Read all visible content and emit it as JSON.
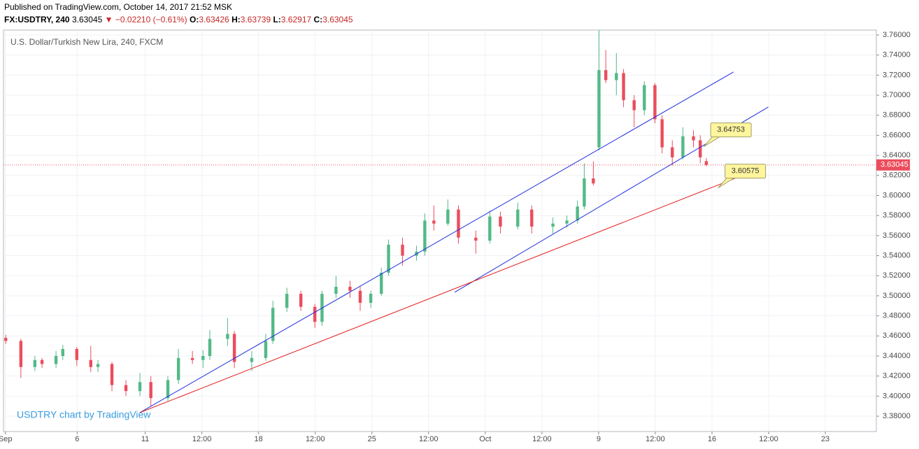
{
  "header": {
    "published": "Published on TradingView.com, October 14, 2017 21:52 MSK",
    "symbol": "FX:USDTRY, 240",
    "last": "3.63045",
    "change": "▼ −0.02210 (−0.61%)",
    "o_label": "O:",
    "o": "3.63426",
    "h_label": "H:",
    "h": "3.63739",
    "l_label": "L:",
    "l": "3.62917",
    "c_label": "C:",
    "c": "3.63045"
  },
  "chart_data": {
    "type": "candlestick",
    "title": "U.S. Dollar/Turkish New Lira, 240, FXCM",
    "watermark": "USDTRY chart by TradingView",
    "up_color": "#53b987",
    "down_color": "#eb4d5c",
    "grid": true,
    "xlim": [
      0,
      231
    ],
    "ylim": [
      3.3647,
      3.7649
    ],
    "xticks": [
      {
        "value": 0.5,
        "label": "Sep"
      },
      {
        "value": 19.5,
        "label": "6"
      },
      {
        "value": 37.5,
        "label": "11"
      },
      {
        "value": 52.5,
        "label": "12:00"
      },
      {
        "value": 67.5,
        "label": "18"
      },
      {
        "value": 82.5,
        "label": "12:00"
      },
      {
        "value": 97.5,
        "label": "25"
      },
      {
        "value": 112.5,
        "label": "12:00"
      },
      {
        "value": 127.5,
        "label": "Oct"
      },
      {
        "value": 142.5,
        "label": "12:00"
      },
      {
        "value": 157.5,
        "label": "9"
      },
      {
        "value": 172.5,
        "label": "12:00"
      },
      {
        "value": 187.5,
        "label": "16"
      },
      {
        "value": 202.5,
        "label": "12:00"
      },
      {
        "value": 217.5,
        "label": "23"
      }
    ],
    "yticks": [
      {
        "value": 3.38,
        "label": "3.38000"
      },
      {
        "value": 3.4,
        "label": "3.40000"
      },
      {
        "value": 3.42,
        "label": "3.42000"
      },
      {
        "value": 3.44,
        "label": "3.44000"
      },
      {
        "value": 3.46,
        "label": "3.46000"
      },
      {
        "value": 3.48,
        "label": "3.48000"
      },
      {
        "value": 3.5,
        "label": "3.50000"
      },
      {
        "value": 3.52,
        "label": "3.52000"
      },
      {
        "value": 3.54,
        "label": "3.54000"
      },
      {
        "value": 3.56,
        "label": "3.56000"
      },
      {
        "value": 3.58,
        "label": "3.58000"
      },
      {
        "value": 3.6,
        "label": "3.60000"
      },
      {
        "value": 3.62,
        "label": "3.62000"
      },
      {
        "value": 3.64,
        "label": "3.64000"
      },
      {
        "value": 3.66,
        "label": "3.66000"
      },
      {
        "value": 3.68,
        "label": "3.68000"
      },
      {
        "value": 3.7,
        "label": "3.70000"
      },
      {
        "value": 3.72,
        "label": "3.72000"
      },
      {
        "value": 3.74,
        "label": "3.74000"
      },
      {
        "value": 3.76,
        "label": "3.76000"
      }
    ],
    "x": [
      0.6,
      4.6,
      8.3,
      10.2,
      13.9,
      15.7,
      19.4,
      23.1,
      25,
      28.7,
      32.4,
      36.1,
      39,
      43.5,
      46.3,
      50,
      52.8,
      54.6,
      59.3,
      61.1,
      65.7,
      69.4,
      71.3,
      75,
      78.7,
      82.4,
      84.3,
      88,
      91.7,
      94.4,
      97.2,
      100,
      101.9,
      105.6,
      109.3,
      111.5,
      113.9,
      117.6,
      120.4,
      125,
      128.7,
      131.5,
      136.1,
      139.8,
      145.4,
      149.1,
      151.9,
      153.7,
      156.1,
      157.6,
      159.4,
      162.2,
      164.1,
      166.9,
      169.6,
      172.4,
      174.3,
      177,
      179.8,
      182.6,
      184.4,
      186
    ],
    "open": [
      3.458,
      3.455,
      3.429,
      3.436,
      3.432,
      3.44,
      3.447,
      3.436,
      3.429,
      3.432,
      3.411,
      3.405,
      3.414,
      3.398,
      3.416,
      3.438,
      3.436,
      3.44,
      3.457,
      3.462,
      3.434,
      3.438,
      3.455,
      3.488,
      3.502,
      3.489,
      3.474,
      3.502,
      3.509,
      3.505,
      3.493,
      3.502,
      3.523,
      3.551,
      3.54,
      3.544,
      3.575,
      3.572,
      3.586,
      3.558,
      3.555,
      3.579,
      3.569,
      3.586,
      3.569,
      3.572,
      3.575,
      3.589,
      3.617,
      3.648,
      3.725,
      3.715,
      3.722,
      3.695,
      3.685,
      3.71,
      3.676,
      3.648,
      3.638,
      3.659,
      3.655,
      3.63426
    ],
    "high": [
      3.461,
      3.457,
      3.44,
      3.438,
      3.445,
      3.451,
      3.449,
      3.45,
      3.436,
      3.434,
      3.416,
      3.423,
      3.42,
      3.42,
      3.447,
      3.445,
      3.446,
      3.466,
      3.478,
      3.465,
      3.445,
      3.462,
      3.495,
      3.508,
      3.505,
      3.492,
      3.505,
      3.52,
      3.515,
      3.51,
      3.505,
      3.528,
      3.556,
      3.558,
      3.55,
      3.582,
      3.59,
      3.596,
      3.59,
      3.565,
      3.585,
      3.584,
      3.593,
      3.59,
      3.578,
      3.58,
      3.595,
      3.632,
      3.634,
      3.765,
      3.745,
      3.742,
      3.726,
      3.7,
      3.714,
      3.712,
      3.68,
      3.655,
      3.668,
      3.665,
      3.66,
      3.63739
    ],
    "low": [
      3.452,
      3.418,
      3.425,
      3.428,
      3.428,
      3.436,
      3.43,
      3.424,
      3.424,
      3.405,
      3.4,
      3.4,
      3.39,
      3.395,
      3.412,
      3.432,
      3.428,
      3.436,
      3.45,
      3.428,
      3.425,
      3.435,
      3.452,
      3.484,
      3.485,
      3.468,
      3.47,
      3.498,
      3.498,
      3.485,
      3.488,
      3.5,
      3.52,
      3.53,
      3.535,
      3.54,
      3.565,
      3.57,
      3.552,
      3.542,
      3.552,
      3.562,
      3.566,
      3.562,
      3.562,
      3.568,
      3.572,
      3.586,
      3.61,
      3.645,
      3.712,
      3.7,
      3.688,
      3.668,
      3.68,
      3.672,
      3.642,
      3.63,
      3.636,
      3.648,
      3.632,
      3.62917
    ],
    "close": [
      3.455,
      3.429,
      3.436,
      3.432,
      3.44,
      3.447,
      3.436,
      3.429,
      3.432,
      3.411,
      3.405,
      3.414,
      3.398,
      3.416,
      3.438,
      3.436,
      3.44,
      3.457,
      3.462,
      3.434,
      3.438,
      3.455,
      3.488,
      3.502,
      3.489,
      3.474,
      3.502,
      3.509,
      3.505,
      3.493,
      3.502,
      3.523,
      3.551,
      3.54,
      3.544,
      3.575,
      3.572,
      3.586,
      3.558,
      3.555,
      3.579,
      3.569,
      3.586,
      3.569,
      3.572,
      3.575,
      3.589,
      3.617,
      3.612,
      3.725,
      3.715,
      3.722,
      3.695,
      3.685,
      3.71,
      3.676,
      3.648,
      3.638,
      3.659,
      3.655,
      3.638,
      3.63045
    ],
    "last_price": {
      "value": 3.63045,
      "label": "3.63045",
      "color": "#eb4d5c"
    },
    "trendlines": [
      {
        "color": "#1f2ee0",
        "x": [
          36.1,
          193.2
        ],
        "y": [
          3.3836,
          3.7231
        ]
      },
      {
        "color": "#1f2ee0",
        "x": [
          119.4,
          202.4
        ],
        "y": [
          3.5035,
          3.6882
        ]
      },
      {
        "color": "#e41e1e",
        "x": [
          36.1,
          193.6
        ],
        "y": [
          3.3836,
          3.6171
        ]
      }
    ],
    "callouts": [
      {
        "label": "3.64753",
        "x": 185.3,
        "y": 3.6486
      },
      {
        "label": "3.60575",
        "x": 189.1,
        "y": 3.6075
      }
    ]
  }
}
